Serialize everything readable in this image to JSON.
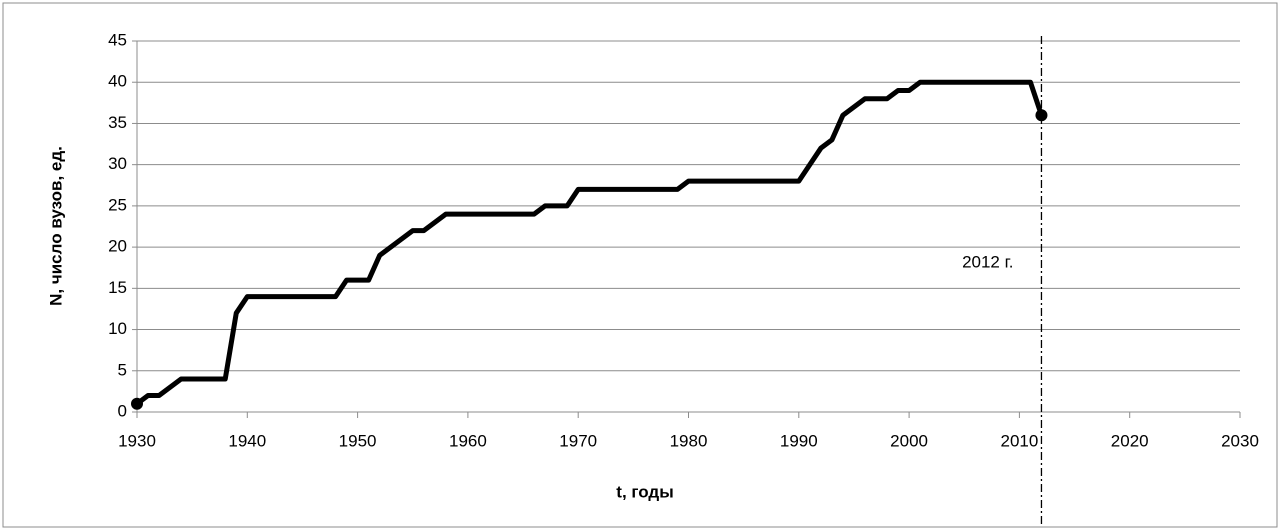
{
  "chart_data": {
    "type": "line",
    "xlabel": "t, годы",
    "ylabel": "N, число вузов, ед.",
    "x": [
      1930,
      1931,
      1932,
      1933,
      1934,
      1935,
      1936,
      1937,
      1938,
      1939,
      1940,
      1941,
      1942,
      1943,
      1944,
      1945,
      1946,
      1947,
      1948,
      1949,
      1950,
      1951,
      1952,
      1953,
      1954,
      1955,
      1956,
      1957,
      1958,
      1959,
      1960,
      1961,
      1962,
      1963,
      1964,
      1965,
      1966,
      1967,
      1968,
      1969,
      1970,
      1971,
      1972,
      1973,
      1974,
      1975,
      1976,
      1977,
      1978,
      1979,
      1980,
      1981,
      1982,
      1983,
      1984,
      1985,
      1986,
      1987,
      1988,
      1989,
      1990,
      1991,
      1992,
      1993,
      1994,
      1995,
      1996,
      1997,
      1998,
      1999,
      2000,
      2001,
      2002,
      2003,
      2004,
      2005,
      2006,
      2007,
      2008,
      2009,
      2010,
      2011,
      2012
    ],
    "series": [
      {
        "color": "#000000",
        "values": [
          1,
          2,
          2,
          3,
          4,
          4,
          4,
          4,
          4,
          12,
          14,
          14,
          14,
          14,
          14,
          14,
          14,
          14,
          14,
          16,
          16,
          16,
          19,
          20,
          21,
          22,
          22,
          23,
          24,
          24,
          24,
          24,
          24,
          24,
          24,
          24,
          24,
          25,
          25,
          25,
          27,
          27,
          27,
          27,
          27,
          27,
          27,
          27,
          27,
          27,
          28,
          28,
          28,
          28,
          28,
          28,
          28,
          28,
          28,
          28,
          28,
          30,
          32,
          33,
          36,
          37,
          38,
          38,
          38,
          39,
          39,
          40,
          40,
          40,
          40,
          40,
          40,
          40,
          40,
          40,
          40,
          40,
          36
        ]
      }
    ],
    "xlim": [
      1930,
      2030
    ],
    "xticks": [
      1930,
      1940,
      1950,
      1960,
      1970,
      1980,
      1990,
      2000,
      2010,
      2020,
      2030
    ],
    "ylim": [
      0,
      45
    ],
    "yticks": [
      0,
      5,
      10,
      15,
      20,
      25,
      30,
      35,
      40,
      45
    ],
    "grid": true,
    "annotations": [
      {
        "text": "2012 г.",
        "x": 2012
      }
    ]
  }
}
